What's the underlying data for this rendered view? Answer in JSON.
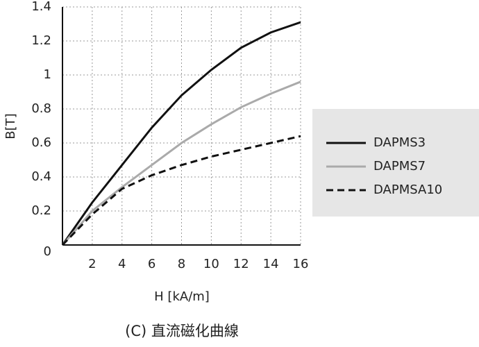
{
  "chart_data": {
    "type": "line",
    "caption": "(C) 直流磁化曲線",
    "x_label": "H [kA/m]",
    "y_label": "B[T]",
    "x": [
      0,
      2,
      4,
      6,
      8,
      10,
      12,
      14,
      16
    ],
    "series": [
      {
        "name": "DAPMS3",
        "color": "#111111",
        "style": "solid",
        "values": [
          0,
          0.25,
          0.47,
          0.69,
          0.88,
          1.03,
          1.16,
          1.25,
          1.31
        ]
      },
      {
        "name": "DAPMS7",
        "color": "#aaaaaa",
        "style": "solid",
        "values": [
          0,
          0.2,
          0.34,
          0.47,
          0.6,
          0.71,
          0.81,
          0.89,
          0.96
        ]
      },
      {
        "name": "DAPMSA10",
        "color": "#111111",
        "style": "dashed",
        "values": [
          0,
          0.18,
          0.33,
          0.41,
          0.47,
          0.52,
          0.56,
          0.6,
          0.64
        ]
      }
    ],
    "xlim": [
      0,
      16
    ],
    "xticks": [
      2,
      4,
      6,
      8,
      10,
      12,
      14,
      16
    ],
    "ylim": [
      0,
      1.4
    ],
    "yticks": [
      0,
      0.2,
      0.4,
      0.6,
      0.8,
      1,
      1.2,
      1.4
    ],
    "grid": true,
    "legend": "right"
  }
}
